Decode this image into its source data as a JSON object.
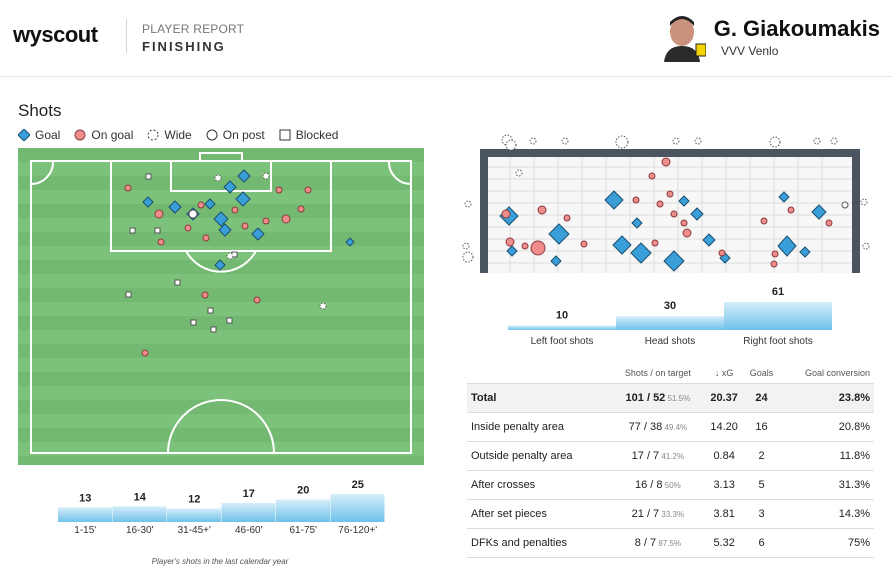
{
  "header": {
    "logo": "wyscout",
    "report_label": "PLAYER REPORT",
    "report_title": "FINISHING",
    "player_name": "G. Giakoumakis",
    "team": "VVV Venlo"
  },
  "shots": {
    "title": "Shots",
    "legend": [
      "Goal",
      "On goal",
      "Wide",
      "On post",
      "Blocked"
    ]
  },
  "foot_bars": [
    {
      "label": "Left foot shots",
      "value": 10
    },
    {
      "label": "Head shots",
      "value": 30
    },
    {
      "label": "Right foot shots",
      "value": 61
    }
  ],
  "time_bars": [
    {
      "label": "1-15'",
      "value": 13
    },
    {
      "label": "16-30'",
      "value": 14
    },
    {
      "label": "31-45+'",
      "value": 12
    },
    {
      "label": "46-60'",
      "value": 17
    },
    {
      "label": "61-75'",
      "value": 20
    },
    {
      "label": "76-120+'",
      "value": 25
    }
  ],
  "caption": "Player's shots in the last calendar year",
  "table": {
    "headers": [
      "",
      "Shots / on target",
      "↓ xG",
      "Goals",
      "Goal conversion"
    ],
    "rows": [
      {
        "label": "Total",
        "shots": "101 / 52",
        "pct": "51.5%",
        "xg": "20.37",
        "goals": "24",
        "conv": "23.8%"
      },
      {
        "label": "Inside penalty area",
        "shots": "77 / 38",
        "pct": "49.4%",
        "xg": "14.20",
        "goals": "16",
        "conv": "20.8%"
      },
      {
        "label": "Outside penalty area",
        "shots": "17 / 7",
        "pct": "41.2%",
        "xg": "0.84",
        "goals": "2",
        "conv": "11.8%"
      },
      {
        "label": "After crosses",
        "shots": "16 / 8",
        "pct": "50%",
        "xg": "3.13",
        "goals": "5",
        "conv": "31.3%"
      },
      {
        "label": "After set pieces",
        "shots": "21 / 7",
        "pct": "33.3%",
        "xg": "3.81",
        "goals": "3",
        "conv": "14.3%"
      },
      {
        "label": "DFKs and penalties",
        "shots": "8 / 7",
        "pct": "87.5%",
        "xg": "5.32",
        "goals": "6",
        "conv": "75%"
      }
    ]
  },
  "colors": {
    "goal": "#3a9fd8",
    "on_goal": "#f08c8c",
    "pitch": "#7cc27a",
    "bar": "#a8d8f0"
  }
}
